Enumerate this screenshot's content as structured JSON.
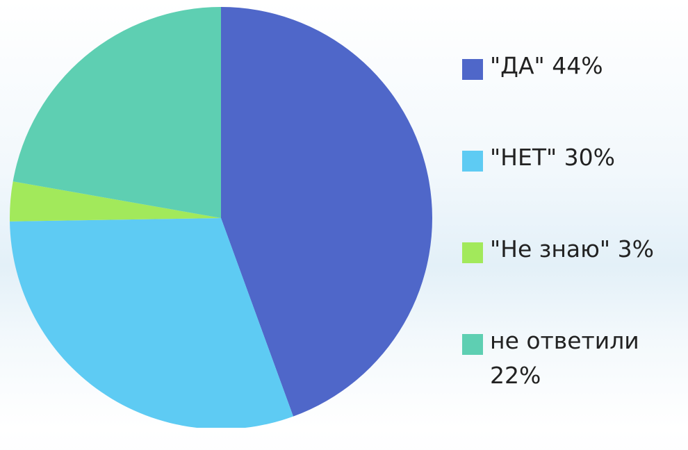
{
  "chart_data": {
    "type": "pie",
    "categories": [
      "\"ДА\" 44%",
      "\"НЕТ\" 30%",
      "\"Не знаю\" 3%",
      "не ответили 22%"
    ],
    "values": [
      44,
      30,
      3,
      22
    ],
    "colors": [
      "#4f67c9",
      "#5ecbf3",
      "#a2e95b",
      "#5ecfb2"
    ],
    "legend": "right"
  }
}
